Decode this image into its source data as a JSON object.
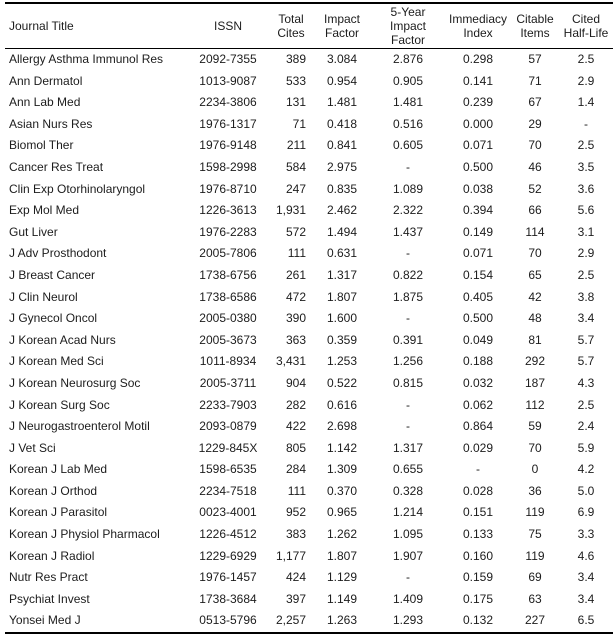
{
  "colors": {
    "background": "#ffffff",
    "rule": "#000000",
    "text": "#1c1c1c"
  },
  "table": {
    "columns": [
      {
        "id": "journal_title",
        "label": "Journal Title"
      },
      {
        "id": "issn",
        "label": "ISSN"
      },
      {
        "id": "total_cites",
        "label": "Total\nCites"
      },
      {
        "id": "impact_factor",
        "label": "Impact\nFactor"
      },
      {
        "id": "five_year_impact_factor",
        "label": "5-Year\nImpact\nFactor"
      },
      {
        "id": "immediacy_index",
        "label": "Immediacy\nIndex"
      },
      {
        "id": "citable_items",
        "label": "Citable\nItems"
      },
      {
        "id": "cited_half_life",
        "label": "Cited\nHalf-Life"
      }
    ],
    "rows": [
      [
        "Allergy Asthma Immunol Res",
        "2092-7355",
        "389",
        "3.084",
        "2.876",
        "0.298",
        "57",
        "2.5"
      ],
      [
        "Ann Dermatol",
        "1013-9087",
        "533",
        "0.954",
        "0.905",
        "0.141",
        "71",
        "2.9"
      ],
      [
        "Ann Lab Med",
        "2234-3806",
        "131",
        "1.481",
        "1.481",
        "0.239",
        "67",
        "1.4"
      ],
      [
        "Asian Nurs Res",
        "1976-1317",
        "71",
        "0.418",
        "0.516",
        "0.000",
        "29",
        "-"
      ],
      [
        "Biomol Ther",
        "1976-9148",
        "211",
        "0.841",
        "0.605",
        "0.071",
        "70",
        "2.5"
      ],
      [
        "Cancer Res Treat",
        "1598-2998",
        "584",
        "2.975",
        "-",
        "0.500",
        "46",
        "3.5"
      ],
      [
        "Clin Exp Otorhinolaryngol",
        "1976-8710",
        "247",
        "0.835",
        "1.089",
        "0.038",
        "52",
        "3.6"
      ],
      [
        "Exp Mol Med",
        "1226-3613",
        "1,931",
        "2.462",
        "2.322",
        "0.394",
        "66",
        "5.6"
      ],
      [
        "Gut Liver",
        "1976-2283",
        "572",
        "1.494",
        "1.437",
        "0.149",
        "114",
        "3.1"
      ],
      [
        "J Adv Prosthodont",
        "2005-7806",
        "111",
        "0.631",
        "-",
        "0.071",
        "70",
        "2.9"
      ],
      [
        "J Breast Cancer",
        "1738-6756",
        "261",
        "1.317",
        "0.822",
        "0.154",
        "65",
        "2.5"
      ],
      [
        "J Clin Neurol",
        "1738-6586",
        "472",
        "1.807",
        "1.875",
        "0.405",
        "42",
        "3.8"
      ],
      [
        "J Gynecol Oncol",
        "2005-0380",
        "390",
        "1.600",
        "-",
        "0.500",
        "48",
        "3.4"
      ],
      [
        "J Korean Acad Nurs",
        "2005-3673",
        "363",
        "0.359",
        "0.391",
        "0.049",
        "81",
        "5.7"
      ],
      [
        "J Korean Med Sci",
        "1011-8934",
        "3,431",
        "1.253",
        "1.256",
        "0.188",
        "292",
        "5.7"
      ],
      [
        "J Korean Neurosurg Soc",
        "2005-3711",
        "904",
        "0.522",
        "0.815",
        "0.032",
        "187",
        "4.3"
      ],
      [
        "J Korean Surg Soc",
        "2233-7903",
        "282",
        "0.616",
        "-",
        "0.062",
        "112",
        "2.5"
      ],
      [
        "J Neurogastroenterol Motil",
        "2093-0879",
        "422",
        "2.698",
        "-",
        "0.864",
        "59",
        "2.4"
      ],
      [
        "J Vet Sci",
        "1229-845X",
        "805",
        "1.142",
        "1.317",
        "0.029",
        "70",
        "5.9"
      ],
      [
        "Korean J Lab Med",
        "1598-6535",
        "284",
        "1.309",
        "0.655",
        "-",
        "0",
        "4.2"
      ],
      [
        "Korean J Orthod",
        "2234-7518",
        "111",
        "0.370",
        "0.328",
        "0.028",
        "36",
        "5.0"
      ],
      [
        "Korean J Parasitol",
        "0023-4001",
        "952",
        "0.965",
        "1.214",
        "0.151",
        "119",
        "6.9"
      ],
      [
        "Korean J Physiol Pharmacol",
        "1226-4512",
        "383",
        "1.262",
        "1.095",
        "0.133",
        "75",
        "3.3"
      ],
      [
        "Korean J Radiol",
        "1229-6929",
        "1,177",
        "1.807",
        "1.907",
        "0.160",
        "119",
        "4.6"
      ],
      [
        "Nutr Res Pract",
        "1976-1457",
        "424",
        "1.129",
        "-",
        "0.159",
        "69",
        "3.4"
      ],
      [
        "Psychiat Invest",
        "1738-3684",
        "397",
        "1.149",
        "1.409",
        "0.175",
        "63",
        "3.4"
      ],
      [
        "Yonsei Med J",
        "0513-5796",
        "2,257",
        "1.263",
        "1.293",
        "0.132",
        "227",
        "6.5"
      ]
    ]
  }
}
